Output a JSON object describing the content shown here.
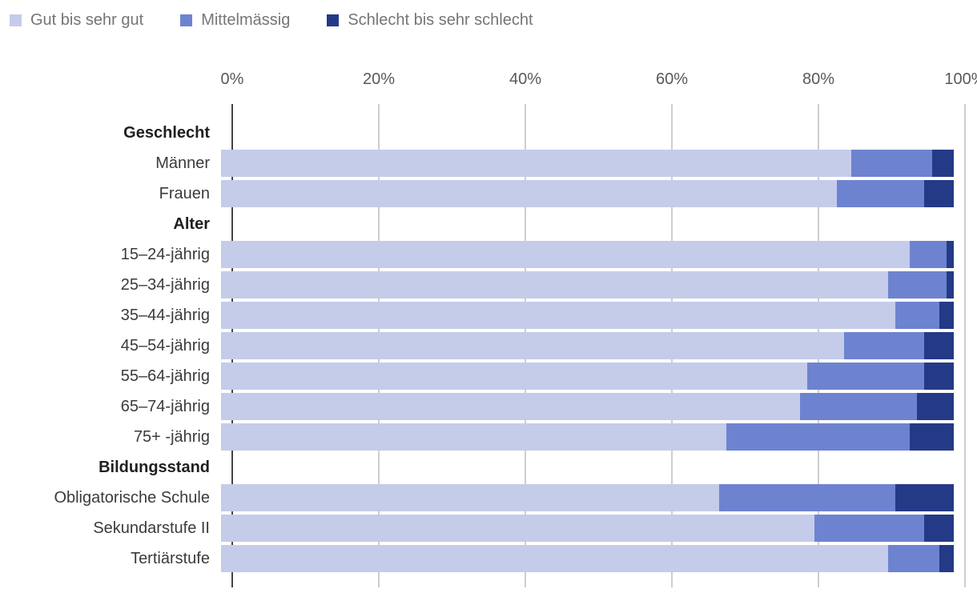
{
  "legend": [
    {
      "label": "Gut bis sehr gut",
      "color": "#c4cce9"
    },
    {
      "label": "Mittelmässig",
      "color": "#6e83d0"
    },
    {
      "label": "Schlecht bis sehr schlecht",
      "color": "#253a87"
    }
  ],
  "axis": {
    "ticks": [
      "0%",
      "20%",
      "40%",
      "60%",
      "80%",
      "100%"
    ]
  },
  "chart_data": {
    "type": "bar",
    "orientation": "horizontal",
    "stacked": true,
    "unit": "%",
    "xlim": [
      0,
      100
    ],
    "grid": "vertical, every 20%",
    "legend_position": "top-left",
    "series_names": [
      "Gut bis sehr gut",
      "Mittelmässig",
      "Schlecht bis sehr schlecht"
    ],
    "rows": [
      {
        "label": "Geschlecht",
        "header": true
      },
      {
        "label": "Männer",
        "values": [
          86,
          11,
          3
        ]
      },
      {
        "label": "Frauen",
        "values": [
          84,
          12,
          4
        ]
      },
      {
        "label": "Alter",
        "header": true
      },
      {
        "label": "15–24-jährig",
        "values": [
          94,
          5,
          1
        ]
      },
      {
        "label": "25–34-jährig",
        "values": [
          91,
          8,
          1
        ]
      },
      {
        "label": "35–44-jährig",
        "values": [
          92,
          6,
          2
        ]
      },
      {
        "label": "45–54-jährig",
        "values": [
          85,
          11,
          4
        ]
      },
      {
        "label": "55–64-jährig",
        "values": [
          80,
          16,
          4
        ]
      },
      {
        "label": "65–74-jährig",
        "values": [
          79,
          16,
          5
        ]
      },
      {
        "label": "75+ -jährig",
        "values": [
          69,
          25,
          6
        ]
      },
      {
        "label": "Bildungsstand",
        "header": true
      },
      {
        "label": "Obligatorische Schule",
        "values": [
          68,
          24,
          8
        ]
      },
      {
        "label": "Sekundarstufe II",
        "values": [
          81,
          15,
          4
        ]
      },
      {
        "label": "Tertiärstufe",
        "values": [
          91,
          7,
          2
        ]
      }
    ]
  }
}
